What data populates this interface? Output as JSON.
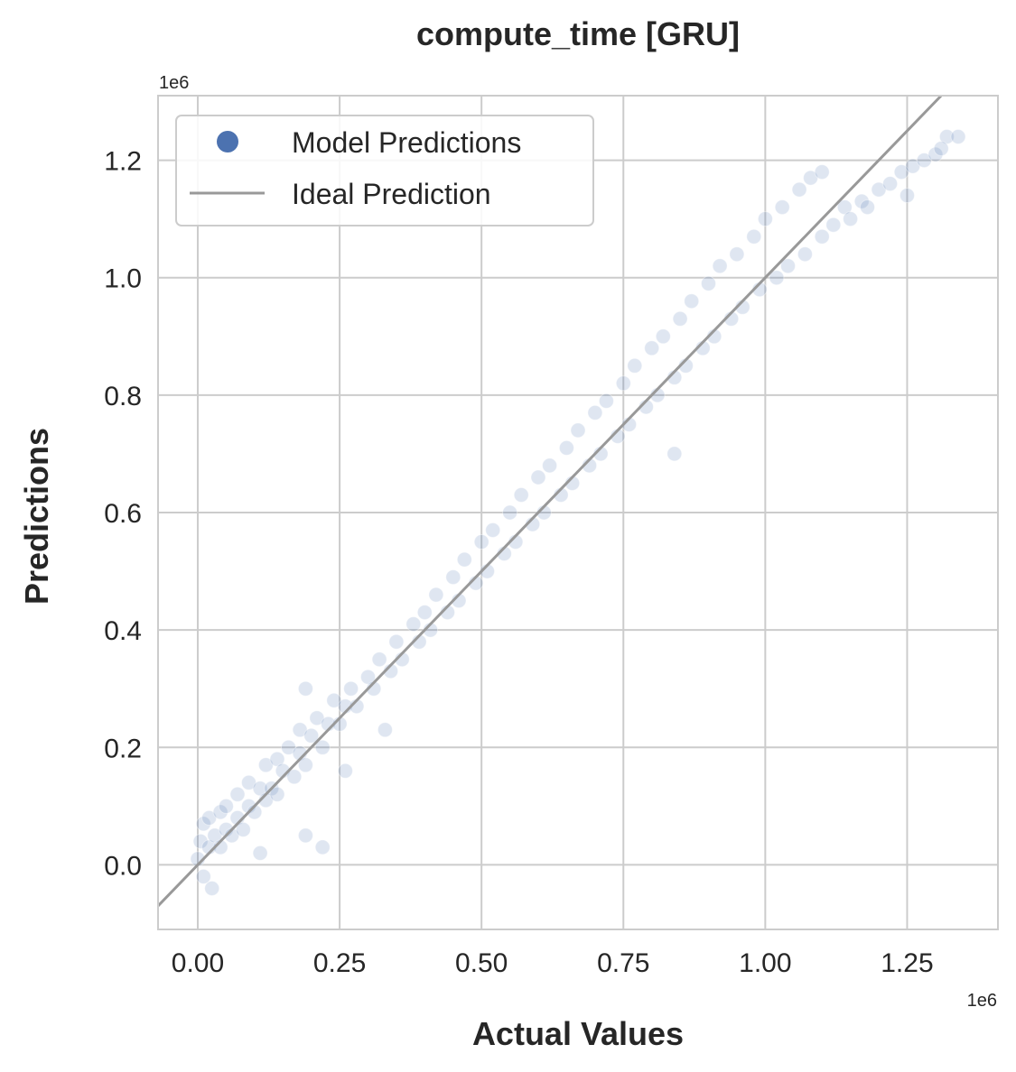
{
  "chart_data": {
    "type": "scatter",
    "title": "compute_time [GRU]",
    "xlabel": "Actual Values",
    "ylabel": "Predictions",
    "x_offset_label": "1e6",
    "y_offset_label": "1e6",
    "xlim": [
      -0.07,
      1.41
    ],
    "ylim": [
      -0.11,
      1.31
    ],
    "x_ticks": [
      0.0,
      0.25,
      0.5,
      0.75,
      1.0,
      1.25
    ],
    "x_tick_labels": [
      "0.00",
      "0.25",
      "0.50",
      "0.75",
      "1.00",
      "1.25"
    ],
    "y_ticks": [
      0.0,
      0.2,
      0.4,
      0.6,
      0.8,
      1.0,
      1.2
    ],
    "y_tick_labels": [
      "0.0",
      "0.2",
      "0.4",
      "0.6",
      "0.8",
      "1.0",
      "1.2"
    ],
    "grid": true,
    "legend": {
      "position": "top-left",
      "entries": [
        "Model Predictions",
        "Ideal Prediction"
      ]
    },
    "colors": {
      "points": "#4c72b0",
      "ideal_line": "#999999",
      "grid": "#cccccc",
      "frame": "#cccccc"
    },
    "series": [
      {
        "name": "Model Predictions",
        "points": [
          [
            0.0,
            0.01
          ],
          [
            0.005,
            0.04
          ],
          [
            0.01,
            0.07
          ],
          [
            0.01,
            -0.02
          ],
          [
            0.02,
            0.03
          ],
          [
            0.02,
            0.08
          ],
          [
            0.025,
            -0.04
          ],
          [
            0.03,
            0.05
          ],
          [
            0.04,
            0.03
          ],
          [
            0.04,
            0.09
          ],
          [
            0.05,
            0.06
          ],
          [
            0.05,
            0.1
          ],
          [
            0.06,
            0.05
          ],
          [
            0.07,
            0.08
          ],
          [
            0.07,
            0.12
          ],
          [
            0.08,
            0.06
          ],
          [
            0.09,
            0.1
          ],
          [
            0.09,
            0.14
          ],
          [
            0.1,
            0.09
          ],
          [
            0.11,
            0.13
          ],
          [
            0.12,
            0.11
          ],
          [
            0.12,
            0.17
          ],
          [
            0.13,
            0.13
          ],
          [
            0.14,
            0.18
          ],
          [
            0.14,
            0.12
          ],
          [
            0.15,
            0.16
          ],
          [
            0.16,
            0.2
          ],
          [
            0.17,
            0.15
          ],
          [
            0.18,
            0.19
          ],
          [
            0.18,
            0.23
          ],
          [
            0.19,
            0.17
          ],
          [
            0.2,
            0.22
          ],
          [
            0.21,
            0.25
          ],
          [
            0.22,
            0.2
          ],
          [
            0.23,
            0.24
          ],
          [
            0.24,
            0.28
          ],
          [
            0.25,
            0.24
          ],
          [
            0.26,
            0.27
          ],
          [
            0.27,
            0.3
          ],
          [
            0.28,
            0.27
          ],
          [
            0.3,
            0.32
          ],
          [
            0.31,
            0.3
          ],
          [
            0.32,
            0.35
          ],
          [
            0.34,
            0.33
          ],
          [
            0.35,
            0.38
          ],
          [
            0.36,
            0.35
          ],
          [
            0.38,
            0.41
          ],
          [
            0.39,
            0.38
          ],
          [
            0.4,
            0.43
          ],
          [
            0.41,
            0.4
          ],
          [
            0.42,
            0.46
          ],
          [
            0.44,
            0.43
          ],
          [
            0.45,
            0.49
          ],
          [
            0.46,
            0.45
          ],
          [
            0.47,
            0.52
          ],
          [
            0.49,
            0.48
          ],
          [
            0.5,
            0.55
          ],
          [
            0.51,
            0.5
          ],
          [
            0.52,
            0.57
          ],
          [
            0.54,
            0.53
          ],
          [
            0.55,
            0.6
          ],
          [
            0.56,
            0.55
          ],
          [
            0.57,
            0.63
          ],
          [
            0.59,
            0.58
          ],
          [
            0.6,
            0.66
          ],
          [
            0.61,
            0.6
          ],
          [
            0.62,
            0.68
          ],
          [
            0.64,
            0.63
          ],
          [
            0.65,
            0.71
          ],
          [
            0.66,
            0.65
          ],
          [
            0.67,
            0.74
          ],
          [
            0.69,
            0.68
          ],
          [
            0.7,
            0.77
          ],
          [
            0.71,
            0.7
          ],
          [
            0.72,
            0.79
          ],
          [
            0.74,
            0.73
          ],
          [
            0.75,
            0.82
          ],
          [
            0.76,
            0.75
          ],
          [
            0.77,
            0.85
          ],
          [
            0.79,
            0.78
          ],
          [
            0.8,
            0.88
          ],
          [
            0.81,
            0.8
          ],
          [
            0.82,
            0.9
          ],
          [
            0.84,
            0.83
          ],
          [
            0.85,
            0.93
          ],
          [
            0.86,
            0.85
          ],
          [
            0.87,
            0.96
          ],
          [
            0.89,
            0.88
          ],
          [
            0.9,
            0.99
          ],
          [
            0.91,
            0.9
          ],
          [
            0.92,
            1.02
          ],
          [
            0.94,
            0.93
          ],
          [
            0.95,
            1.04
          ],
          [
            0.96,
            0.95
          ],
          [
            0.98,
            1.07
          ],
          [
            0.99,
            0.98
          ],
          [
            1.0,
            1.1
          ],
          [
            1.02,
            1.0
          ],
          [
            1.03,
            1.12
          ],
          [
            1.04,
            1.02
          ],
          [
            1.06,
            1.15
          ],
          [
            1.07,
            1.04
          ],
          [
            1.08,
            1.17
          ],
          [
            1.1,
            1.07
          ],
          [
            1.12,
            1.09
          ],
          [
            1.14,
            1.12
          ],
          [
            1.15,
            1.1
          ],
          [
            1.17,
            1.13
          ],
          [
            1.18,
            1.12
          ],
          [
            1.2,
            1.15
          ],
          [
            1.22,
            1.16
          ],
          [
            1.24,
            1.18
          ],
          [
            1.25,
            1.14
          ],
          [
            1.26,
            1.19
          ],
          [
            1.28,
            1.2
          ],
          [
            1.3,
            1.21
          ],
          [
            1.32,
            1.24
          ],
          [
            1.34,
            1.24
          ],
          [
            1.31,
            1.22
          ],
          [
            0.84,
            0.7
          ],
          [
            0.33,
            0.23
          ],
          [
            0.22,
            0.03
          ],
          [
            0.19,
            0.05
          ],
          [
            0.19,
            0.3
          ],
          [
            0.11,
            0.02
          ],
          [
            0.26,
            0.16
          ],
          [
            1.1,
            1.18
          ]
        ]
      },
      {
        "name": "Ideal Prediction",
        "line": [
          [
            -0.07,
            -0.07
          ],
          [
            1.31,
            1.31
          ]
        ]
      }
    ]
  }
}
